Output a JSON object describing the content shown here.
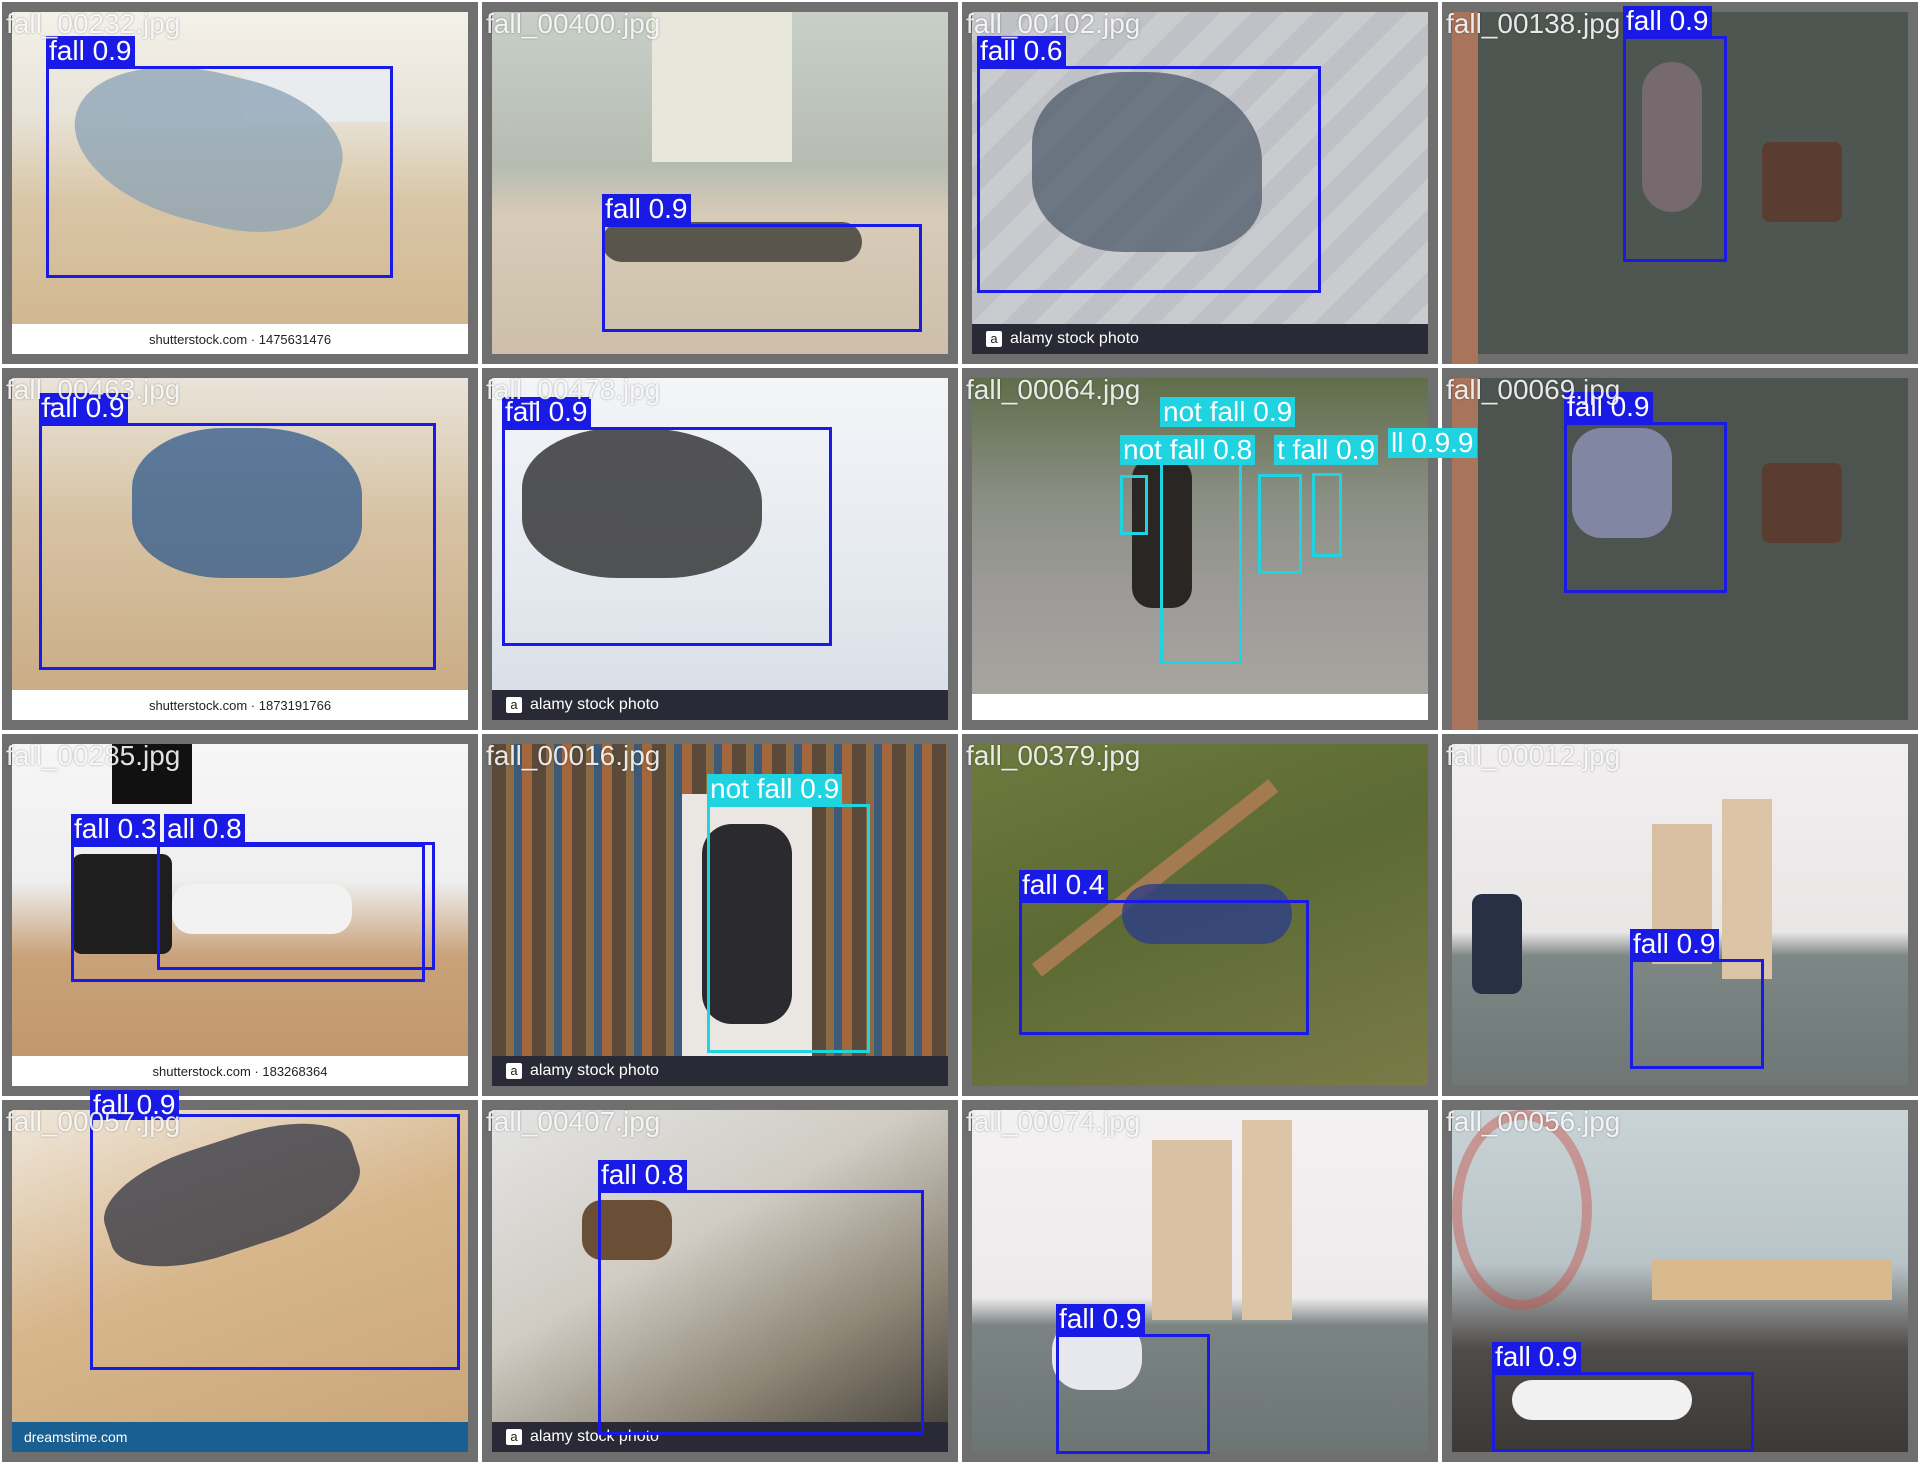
{
  "colors": {
    "fall_box": "#1a1ae6",
    "not_fall_box": "#1fd3e0",
    "tile_border": "#6f6f6f"
  },
  "tiles": [
    {
      "filename": "fall_00232.jpg",
      "labels": [
        "fall 0.9"
      ],
      "banner": "shutterstock.com · 1475631476"
    },
    {
      "filename": "fall_00400.jpg",
      "labels": [
        "fall 0.9"
      ]
    },
    {
      "filename": "fall_00102.jpg",
      "labels": [
        "fall 0.6"
      ],
      "banner": "alamy stock photo"
    },
    {
      "filename": "fall_00138.jpg",
      "labels": [
        "fall 0.9"
      ]
    },
    {
      "filename": "fall_00463.jpg",
      "labels": [
        "fall 0.9"
      ],
      "banner": "shutterstock.com · 1873191766"
    },
    {
      "filename": "fall_00478.jpg",
      "labels": [
        "fall 0.9"
      ],
      "banner": "alamy stock photo"
    },
    {
      "filename": "fall_00064.jpg",
      "labels": [
        "not fall 0.9",
        "not fall 0.8",
        "t fall 0.9",
        "ll 0.9.9"
      ]
    },
    {
      "filename": "fall_00069.jpg",
      "labels": [
        "fall 0.9"
      ]
    },
    {
      "filename": "fall_00285.jpg",
      "labels": [
        "fall 0.3",
        "all 0.8"
      ],
      "banner": "shutterstock.com · 183268364"
    },
    {
      "filename": "fall_00016.jpg",
      "labels": [
        "not fall 0.9"
      ],
      "banner": "alamy stock photo"
    },
    {
      "filename": "fall_00379.jpg",
      "labels": [
        "fall 0.4"
      ]
    },
    {
      "filename": "fall_00012.jpg",
      "labels": [
        "fall 0.9"
      ]
    },
    {
      "filename": "fall_00057.jpg",
      "labels": [
        "fall 0.9"
      ],
      "banner": "dreamstime.com"
    },
    {
      "filename": "fall_00407.jpg",
      "labels": [
        "fall 0.8"
      ],
      "banner": "alamy stock photo"
    },
    {
      "filename": "fall_00074.jpg",
      "labels": [
        "fall 0.9"
      ]
    },
    {
      "filename": "fall_00056.jpg",
      "labels": [
        "fall 0.9"
      ]
    }
  ]
}
